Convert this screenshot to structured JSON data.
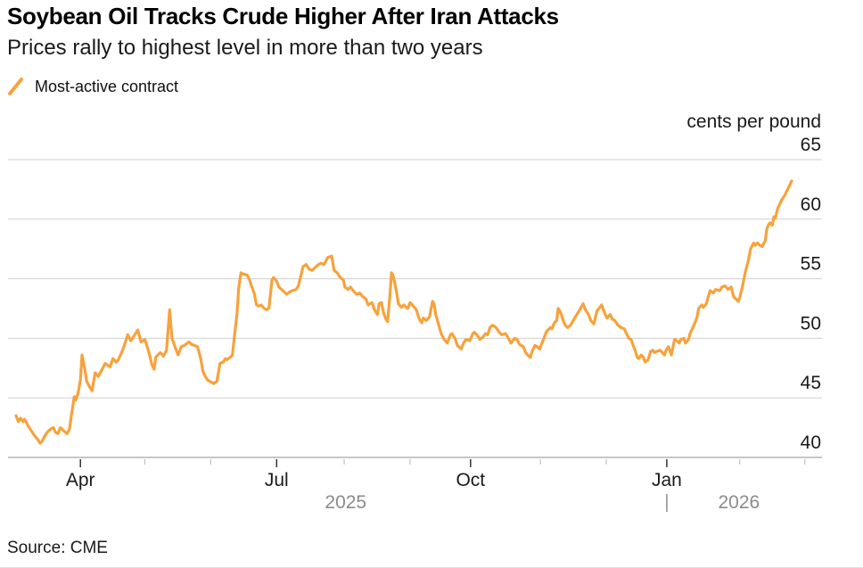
{
  "header": {
    "title": "Soybean Oil Tracks Crude Higher After Iran Attacks",
    "subtitle": "Prices rally to highest level in more than two years"
  },
  "legend": {
    "items": [
      {
        "label": "Most-active contract",
        "marker": "diagonal-line",
        "color": "#F7A23C"
      }
    ]
  },
  "footer": {
    "source": "Source: CME"
  },
  "colors": {
    "accent_orange": "#F7A23C",
    "gridline": "#d0d0d0",
    "axis_line": "#c6c6c6",
    "major_tick": "#333333",
    "minor_tick": "#c0c0c0",
    "year_label": "#8b8b8b",
    "text_primary": "#000000",
    "text_secondary": "#1a1a1a"
  },
  "chart_data": {
    "type": "line",
    "title": "Soybean Oil Tracks Crude Higher After Iran Attacks",
    "subtitle": "Prices rally to highest level in more than two years",
    "unit_label": "cents per pound",
    "source": "Source: CME",
    "legend_position": "top-left",
    "grid": "horizontal-only",
    "y_axis": {
      "side": "right",
      "range": [
        40,
        65
      ],
      "ticks": [
        40,
        45,
        50,
        55,
        60,
        65
      ]
    },
    "x_axis": {
      "span": "2025-03-02 to 2026-02-28",
      "x_encoding": "t = fraction of the full time span (0 = early Mar 2025, 1 = late Feb 2026)",
      "major_ticks": [
        {
          "label": "Apr",
          "f": 0.083
        },
        {
          "label": "Jul",
          "f": 0.336
        },
        {
          "label": "Oct",
          "f": 0.586
        },
        {
          "label": "Jan",
          "f": 0.839
        }
      ],
      "minor_tick_fs": [
        0.166,
        0.251,
        0.423,
        0.508,
        0.676,
        0.761,
        0.933,
        1.017
      ],
      "year_labels": [
        {
          "label": "2025",
          "f": 0.425
        },
        {
          "label": "2026",
          "f": 0.932
        }
      ],
      "year_divider_f": 0.839
    },
    "series": [
      {
        "name": "Most-active contract",
        "color": "#F7A23C",
        "points": [
          [
            0.0,
            43.5
          ],
          [
            0.003,
            43.0
          ],
          [
            0.006,
            43.3
          ],
          [
            0.009,
            43.0
          ],
          [
            0.011,
            43.2
          ],
          [
            0.016,
            42.6
          ],
          [
            0.02,
            42.2
          ],
          [
            0.023,
            41.9
          ],
          [
            0.028,
            41.5
          ],
          [
            0.031,
            41.2
          ],
          [
            0.034,
            41.4
          ],
          [
            0.037,
            41.8
          ],
          [
            0.04,
            42.1
          ],
          [
            0.045,
            42.4
          ],
          [
            0.048,
            42.5
          ],
          [
            0.051,
            42.1
          ],
          [
            0.054,
            42.0
          ],
          [
            0.057,
            42.5
          ],
          [
            0.062,
            42.2
          ],
          [
            0.066,
            42.0
          ],
          [
            0.069,
            42.4
          ],
          [
            0.071,
            43.4
          ],
          [
            0.075,
            45.1
          ],
          [
            0.077,
            44.8
          ],
          [
            0.08,
            45.4
          ],
          [
            0.083,
            46.5
          ],
          [
            0.085,
            48.6
          ],
          [
            0.089,
            47.3
          ],
          [
            0.091,
            46.4
          ],
          [
            0.094,
            46.0
          ],
          [
            0.098,
            45.6
          ],
          [
            0.102,
            47.1
          ],
          [
            0.106,
            46.8
          ],
          [
            0.111,
            47.4
          ],
          [
            0.115,
            47.9
          ],
          [
            0.121,
            47.6
          ],
          [
            0.125,
            48.3
          ],
          [
            0.129,
            48.0
          ],
          [
            0.132,
            48.2
          ],
          [
            0.138,
            49.1
          ],
          [
            0.144,
            50.3
          ],
          [
            0.148,
            49.8
          ],
          [
            0.154,
            50.4
          ],
          [
            0.157,
            50.7
          ],
          [
            0.161,
            49.7
          ],
          [
            0.166,
            49.9
          ],
          [
            0.171,
            48.9
          ],
          [
            0.175,
            47.8
          ],
          [
            0.178,
            47.4
          ],
          [
            0.18,
            48.4
          ],
          [
            0.186,
            48.8
          ],
          [
            0.19,
            48.5
          ],
          [
            0.194,
            49.0
          ],
          [
            0.198,
            52.4
          ],
          [
            0.201,
            50.0
          ],
          [
            0.206,
            49.1
          ],
          [
            0.209,
            48.6
          ],
          [
            0.213,
            49.3
          ],
          [
            0.217,
            49.4
          ],
          [
            0.223,
            49.7
          ],
          [
            0.226,
            49.5
          ],
          [
            0.23,
            49.4
          ],
          [
            0.234,
            49.3
          ],
          [
            0.238,
            48.3
          ],
          [
            0.241,
            47.2
          ],
          [
            0.244,
            46.8
          ],
          [
            0.247,
            46.5
          ],
          [
            0.252,
            46.3
          ],
          [
            0.255,
            46.2
          ],
          [
            0.259,
            46.4
          ],
          [
            0.263,
            47.9
          ],
          [
            0.267,
            48.0
          ],
          [
            0.27,
            48.3
          ],
          [
            0.272,
            48.2
          ],
          [
            0.276,
            48.4
          ],
          [
            0.279,
            48.6
          ],
          [
            0.282,
            50.4
          ],
          [
            0.285,
            52.1
          ],
          [
            0.287,
            54.2
          ],
          [
            0.29,
            55.5
          ],
          [
            0.293,
            55.4
          ],
          [
            0.298,
            55.3
          ],
          [
            0.301,
            54.9
          ],
          [
            0.303,
            54.5
          ],
          [
            0.307,
            53.8
          ],
          [
            0.31,
            52.8
          ],
          [
            0.313,
            52.7
          ],
          [
            0.316,
            52.8
          ],
          [
            0.32,
            52.5
          ],
          [
            0.323,
            52.4
          ],
          [
            0.326,
            52.5
          ],
          [
            0.33,
            54.9
          ],
          [
            0.332,
            55.1
          ],
          [
            0.336,
            54.8
          ],
          [
            0.339,
            54.3
          ],
          [
            0.344,
            54.0
          ],
          [
            0.349,
            53.7
          ],
          [
            0.353,
            53.9
          ],
          [
            0.356,
            54.0
          ],
          [
            0.361,
            54.1
          ],
          [
            0.364,
            54.4
          ],
          [
            0.37,
            56.0
          ],
          [
            0.374,
            56.2
          ],
          [
            0.378,
            55.8
          ],
          [
            0.382,
            55.7
          ],
          [
            0.385,
            55.9
          ],
          [
            0.39,
            56.2
          ],
          [
            0.393,
            56.3
          ],
          [
            0.397,
            56.2
          ],
          [
            0.402,
            56.8
          ],
          [
            0.407,
            56.9
          ],
          [
            0.41,
            55.7
          ],
          [
            0.414,
            55.5
          ],
          [
            0.418,
            55.1
          ],
          [
            0.422,
            54.9
          ],
          [
            0.424,
            54.3
          ],
          [
            0.428,
            54.1
          ],
          [
            0.431,
            54.3
          ],
          [
            0.436,
            53.9
          ],
          [
            0.439,
            53.7
          ],
          [
            0.443,
            53.8
          ],
          [
            0.447,
            53.5
          ],
          [
            0.451,
            53.3
          ],
          [
            0.454,
            52.8
          ],
          [
            0.459,
            53.0
          ],
          [
            0.462,
            52.4
          ],
          [
            0.466,
            52.0
          ],
          [
            0.468,
            52.9
          ],
          [
            0.471,
            53.0
          ],
          [
            0.474,
            52.1
          ],
          [
            0.477,
            51.6
          ],
          [
            0.479,
            51.4
          ],
          [
            0.482,
            53.5
          ],
          [
            0.484,
            55.5
          ],
          [
            0.486,
            55.3
          ],
          [
            0.489,
            54.4
          ],
          [
            0.491,
            53.7
          ],
          [
            0.493,
            52.9
          ],
          [
            0.497,
            52.6
          ],
          [
            0.5,
            52.8
          ],
          [
            0.505,
            52.5
          ],
          [
            0.508,
            53.0
          ],
          [
            0.511,
            52.8
          ],
          [
            0.516,
            52.4
          ],
          [
            0.52,
            51.6
          ],
          [
            0.523,
            51.3
          ],
          [
            0.525,
            51.7
          ],
          [
            0.529,
            51.5
          ],
          [
            0.533,
            51.8
          ],
          [
            0.537,
            53.1
          ],
          [
            0.539,
            52.9
          ],
          [
            0.541,
            52.0
          ],
          [
            0.545,
            51.1
          ],
          [
            0.548,
            50.4
          ],
          [
            0.552,
            49.9
          ],
          [
            0.556,
            49.6
          ],
          [
            0.56,
            50.3
          ],
          [
            0.562,
            50.4
          ],
          [
            0.566,
            50.0
          ],
          [
            0.569,
            49.4
          ],
          [
            0.574,
            49.1
          ],
          [
            0.577,
            49.6
          ],
          [
            0.58,
            49.9
          ],
          [
            0.585,
            49.8
          ],
          [
            0.589,
            50.4
          ],
          [
            0.591,
            50.5
          ],
          [
            0.594,
            50.3
          ],
          [
            0.598,
            49.9
          ],
          [
            0.602,
            50.1
          ],
          [
            0.605,
            50.4
          ],
          [
            0.608,
            50.3
          ],
          [
            0.611,
            50.9
          ],
          [
            0.614,
            51.1
          ],
          [
            0.617,
            51.0
          ],
          [
            0.62,
            50.8
          ],
          [
            0.623,
            50.5
          ],
          [
            0.626,
            50.3
          ],
          [
            0.631,
            50.4
          ],
          [
            0.634,
            50.1
          ],
          [
            0.638,
            49.6
          ],
          [
            0.643,
            50.0
          ],
          [
            0.646,
            49.9
          ],
          [
            0.649,
            49.5
          ],
          [
            0.654,
            49.3
          ],
          [
            0.657,
            48.8
          ],
          [
            0.661,
            48.5
          ],
          [
            0.663,
            48.4
          ],
          [
            0.666,
            49.0
          ],
          [
            0.669,
            49.4
          ],
          [
            0.672,
            49.3
          ],
          [
            0.675,
            49.1
          ],
          [
            0.678,
            49.6
          ],
          [
            0.68,
            49.9
          ],
          [
            0.684,
            50.6
          ],
          [
            0.689,
            50.9
          ],
          [
            0.691,
            50.8
          ],
          [
            0.694,
            51.3
          ],
          [
            0.697,
            51.5
          ],
          [
            0.699,
            52.5
          ],
          [
            0.701,
            52.3
          ],
          [
            0.703,
            52.0
          ],
          [
            0.706,
            51.4
          ],
          [
            0.708,
            51.1
          ],
          [
            0.711,
            50.9
          ],
          [
            0.715,
            51.1
          ],
          [
            0.721,
            51.8
          ],
          [
            0.726,
            52.3
          ],
          [
            0.731,
            52.9
          ],
          [
            0.734,
            52.4
          ],
          [
            0.738,
            52.0
          ],
          [
            0.741,
            51.5
          ],
          [
            0.745,
            51.2
          ],
          [
            0.749,
            52.3
          ],
          [
            0.755,
            52.8
          ],
          [
            0.759,
            52.1
          ],
          [
            0.762,
            51.7
          ],
          [
            0.766,
            52.0
          ],
          [
            0.769,
            51.6
          ],
          [
            0.772,
            51.5
          ],
          [
            0.776,
            51.1
          ],
          [
            0.78,
            50.9
          ],
          [
            0.784,
            50.8
          ],
          [
            0.787,
            50.4
          ],
          [
            0.79,
            50.0
          ],
          [
            0.793,
            49.9
          ],
          [
            0.795,
            49.5
          ],
          [
            0.798,
            49.0
          ],
          [
            0.801,
            48.4
          ],
          [
            0.803,
            48.3
          ],
          [
            0.806,
            48.6
          ],
          [
            0.809,
            48.4
          ],
          [
            0.811,
            48.0
          ],
          [
            0.815,
            48.2
          ],
          [
            0.818,
            48.9
          ],
          [
            0.821,
            49.0
          ],
          [
            0.823,
            48.8
          ],
          [
            0.826,
            48.9
          ],
          [
            0.83,
            49.0
          ],
          [
            0.832,
            48.9
          ],
          [
            0.836,
            48.6
          ],
          [
            0.838,
            49.0
          ],
          [
            0.841,
            49.3
          ],
          [
            0.845,
            48.6
          ],
          [
            0.849,
            49.9
          ],
          [
            0.852,
            49.8
          ],
          [
            0.855,
            49.6
          ],
          [
            0.857,
            49.9
          ],
          [
            0.861,
            50.0
          ],
          [
            0.863,
            49.6
          ],
          [
            0.867,
            49.9
          ],
          [
            0.869,
            50.4
          ],
          [
            0.872,
            50.8
          ],
          [
            0.876,
            51.4
          ],
          [
            0.878,
            51.8
          ],
          [
            0.88,
            52.5
          ],
          [
            0.884,
            52.8
          ],
          [
            0.886,
            52.6
          ],
          [
            0.89,
            52.9
          ],
          [
            0.892,
            53.4
          ],
          [
            0.895,
            54.0
          ],
          [
            0.899,
            53.8
          ],
          [
            0.902,
            54.1
          ],
          [
            0.907,
            54.0
          ],
          [
            0.91,
            54.3
          ],
          [
            0.914,
            54.4
          ],
          [
            0.918,
            54.1
          ],
          [
            0.922,
            54.3
          ],
          [
            0.925,
            53.5
          ],
          [
            0.928,
            53.3
          ],
          [
            0.931,
            53.1
          ],
          [
            0.933,
            53.4
          ],
          [
            0.937,
            54.5
          ],
          [
            0.94,
            55.5
          ],
          [
            0.944,
            56.5
          ],
          [
            0.947,
            57.5
          ],
          [
            0.951,
            58.0
          ],
          [
            0.953,
            57.8
          ],
          [
            0.956,
            58.0
          ],
          [
            0.959,
            57.8
          ],
          [
            0.962,
            57.7
          ],
          [
            0.966,
            58.2
          ],
          [
            0.968,
            59.2
          ],
          [
            0.97,
            59.5
          ],
          [
            0.972,
            59.7
          ],
          [
            0.975,
            59.5
          ],
          [
            0.977,
            60.2
          ],
          [
            0.979,
            60.1
          ],
          [
            0.982,
            60.9
          ],
          [
            0.985,
            61.3
          ],
          [
            0.987,
            61.6
          ],
          [
            0.991,
            62.0
          ],
          [
            0.994,
            62.4
          ],
          [
            0.997,
            62.8
          ],
          [
            1.0,
            63.2
          ]
        ]
      }
    ]
  }
}
